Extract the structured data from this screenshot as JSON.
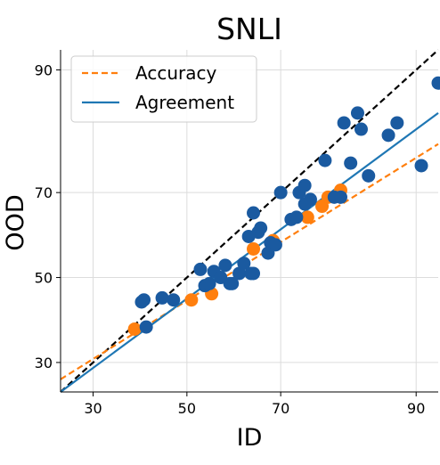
{
  "chart_data": {
    "type": "scatter",
    "title": "SNLI",
    "xlabel": "ID",
    "ylabel": "OOD",
    "xlim": [
      24,
      92
    ],
    "ylim": [
      24,
      92
    ],
    "scale": "probit",
    "xticks": [
      30,
      50,
      70,
      90
    ],
    "yticks": [
      30,
      50,
      70,
      90
    ],
    "grid": true,
    "legend": {
      "placement": "top-left",
      "entries": [
        {
          "label": "Accuracy",
          "style": "dashed",
          "color": "#ff7f0e"
        },
        {
          "label": "Agreement",
          "style": "solid",
          "color": "#1f77b4"
        }
      ]
    },
    "reference_line": {
      "style": "dashed",
      "color": "#000000",
      "description": "y = x"
    },
    "series": [
      {
        "name": "Accuracy",
        "color": "#ff7f0e",
        "fit": {
          "from": [
            24,
            26.5
          ],
          "to": [
            92,
            79.5
          ]
        },
        "points": [
          [
            38.5,
            37.5
          ],
          [
            51.0,
            44.5
          ],
          [
            55.5,
            46.0
          ],
          [
            64.5,
            57.0
          ],
          [
            68.5,
            59.0
          ],
          [
            75.0,
            64.5
          ],
          [
            77.5,
            67.0
          ],
          [
            78.5,
            69.0
          ],
          [
            80.5,
            70.5
          ]
        ]
      },
      {
        "name": "Agreement",
        "color": "#1f77b4",
        "fit": {
          "from": [
            24,
            24.0
          ],
          "to": [
            92,
            84.5
          ]
        },
        "points": [
          [
            40.0,
            44.0
          ],
          [
            40.5,
            44.5
          ],
          [
            41.0,
            38.0
          ],
          [
            44.5,
            45.0
          ],
          [
            47.0,
            44.5
          ],
          [
            53.0,
            52.0
          ],
          [
            54.0,
            48.0
          ],
          [
            55.0,
            48.5
          ],
          [
            56.0,
            51.5
          ],
          [
            57.5,
            50.0
          ],
          [
            58.5,
            53.0
          ],
          [
            59.5,
            48.5
          ],
          [
            60.0,
            48.5
          ],
          [
            61.5,
            51.0
          ],
          [
            62.5,
            53.5
          ],
          [
            63.5,
            60.0
          ],
          [
            64.0,
            51.0
          ],
          [
            64.5,
            51.0
          ],
          [
            64.5,
            65.5
          ],
          [
            65.5,
            61.0
          ],
          [
            66.0,
            62.0
          ],
          [
            67.5,
            56.0
          ],
          [
            68.0,
            58.5
          ],
          [
            69.0,
            58.0
          ],
          [
            70.0,
            70.0
          ],
          [
            72.0,
            64.0
          ],
          [
            73.0,
            64.5
          ],
          [
            73.5,
            70.0
          ],
          [
            74.5,
            67.5
          ],
          [
            74.5,
            71.5
          ],
          [
            75.5,
            68.5
          ],
          [
            78.0,
            76.5
          ],
          [
            79.5,
            69.0
          ],
          [
            80.5,
            69.0
          ],
          [
            81.0,
            83.0
          ],
          [
            82.0,
            76.0
          ],
          [
            83.0,
            84.5
          ],
          [
            83.5,
            82.0
          ],
          [
            84.5,
            73.5
          ],
          [
            87.0,
            81.0
          ],
          [
            88.0,
            83.0
          ],
          [
            90.5,
            75.5
          ],
          [
            92.0,
            88.5
          ]
        ]
      }
    ]
  }
}
